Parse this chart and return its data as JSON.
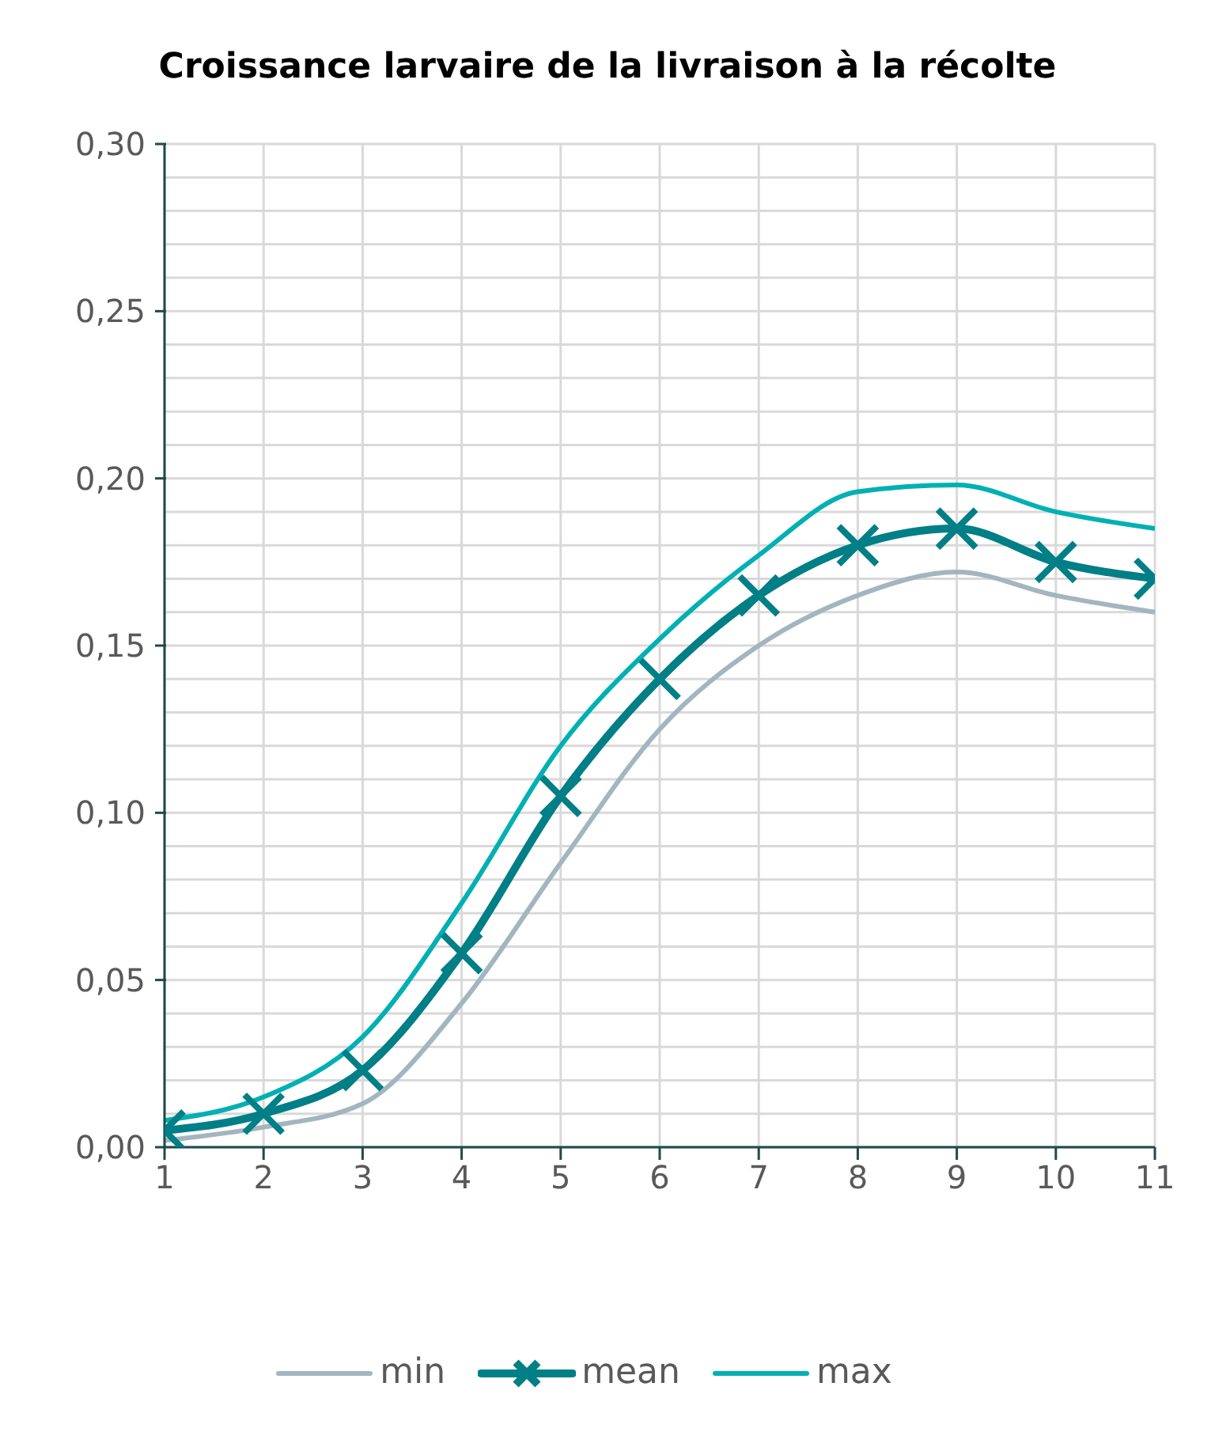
{
  "chart_data": {
    "type": "line",
    "title": "Croissance larvaire de la livraison à la récolte",
    "x": [
      1,
      2,
      3,
      4,
      5,
      6,
      7,
      8,
      9,
      10,
      11
    ],
    "xlim": [
      1,
      11
    ],
    "xticks": [
      1,
      2,
      3,
      4,
      5,
      6,
      7,
      8,
      9,
      10,
      11
    ],
    "ylim": [
      0,
      0.3
    ],
    "yticks": [
      {
        "value": 0,
        "label": "0,00"
      },
      {
        "value": 0.01,
        "label": null
      },
      {
        "value": 0.02,
        "label": null
      },
      {
        "value": 0.03,
        "label": null
      },
      {
        "value": 0.04,
        "label": null
      },
      {
        "value": 0.05,
        "label": "0,05"
      },
      {
        "value": 0.06,
        "label": null
      },
      {
        "value": 0.07,
        "label": null
      },
      {
        "value": 0.08,
        "label": null
      },
      {
        "value": 0.09,
        "label": null
      },
      {
        "value": 0.1,
        "label": "0,10"
      },
      {
        "value": 0.11,
        "label": null
      },
      {
        "value": 0.12,
        "label": null
      },
      {
        "value": 0.13,
        "label": null
      },
      {
        "value": 0.14,
        "label": null
      },
      {
        "value": 0.15,
        "label": "0,15"
      },
      {
        "value": 0.16,
        "label": null
      },
      {
        "value": 0.17,
        "label": null
      },
      {
        "value": 0.18,
        "label": null
      },
      {
        "value": 0.19,
        "label": null
      },
      {
        "value": 0.2,
        "label": "0,20"
      },
      {
        "value": 0.21,
        "label": null
      },
      {
        "value": 0.22,
        "label": null
      },
      {
        "value": 0.23,
        "label": null
      },
      {
        "value": 0.24,
        "label": null
      },
      {
        "value": 0.25,
        "label": "0,25"
      },
      {
        "value": 0.26,
        "label": null
      },
      {
        "value": 0.27,
        "label": null
      },
      {
        "value": 0.28,
        "label": null
      },
      {
        "value": 0.29,
        "label": null
      },
      {
        "value": 0.3,
        "label": "0,30"
      }
    ],
    "grid": true,
    "legend": "bottom",
    "series": [
      {
        "name": "min",
        "color": "#a3b6c0",
        "marker": "none",
        "values": [
          0.002,
          0.006,
          0.013,
          0.043,
          0.085,
          0.125,
          0.15,
          0.165,
          0.172,
          0.165,
          0.16
        ]
      },
      {
        "name": "mean",
        "color": "#007f86",
        "marker": "cross",
        "values": [
          0.005,
          0.01,
          0.023,
          0.058,
          0.105,
          0.14,
          0.165,
          0.18,
          0.185,
          0.175,
          0.17
        ]
      },
      {
        "name": "max",
        "color": "#00b0b3",
        "marker": "none",
        "values": [
          0.008,
          0.015,
          0.033,
          0.073,
          0.12,
          0.152,
          0.177,
          0.196,
          0.198,
          0.19,
          0.185
        ]
      }
    ]
  }
}
